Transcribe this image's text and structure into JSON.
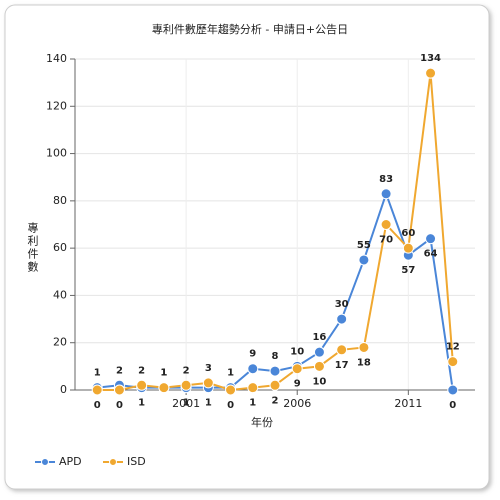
{
  "chart_data": {
    "type": "line",
    "title": "專利件數歷年趨勢分析 - 申請日+公告日",
    "x_label": "年份",
    "y_label": "專利件數",
    "x": [
      1997,
      1998,
      1999,
      2000,
      2001,
      2002,
      2003,
      2004,
      2005,
      2006,
      2007,
      2008,
      2009,
      2010,
      2011,
      2012,
      2013
    ],
    "series": [
      {
        "name": "APD",
        "color": "#4a86d8",
        "values": [
          1,
          2,
          1,
          1,
          1,
          1,
          1,
          9,
          8,
          10,
          16,
          30,
          55,
          83,
          57,
          64,
          0
        ]
      },
      {
        "name": "ISD",
        "color": "#f0a830",
        "values": [
          0,
          0,
          2,
          1,
          2,
          3,
          0,
          1,
          2,
          9,
          10,
          17,
          18,
          70,
          60,
          134,
          12
        ]
      }
    ],
    "xlim": [
      1996,
      2014
    ],
    "xticks": [
      2001,
      2006,
      2011
    ],
    "ylim": [
      0,
      140
    ],
    "yticks": [
      0,
      20,
      40,
      60,
      80,
      100,
      120,
      140
    ],
    "grid": true,
    "legend": "bottom-left"
  }
}
